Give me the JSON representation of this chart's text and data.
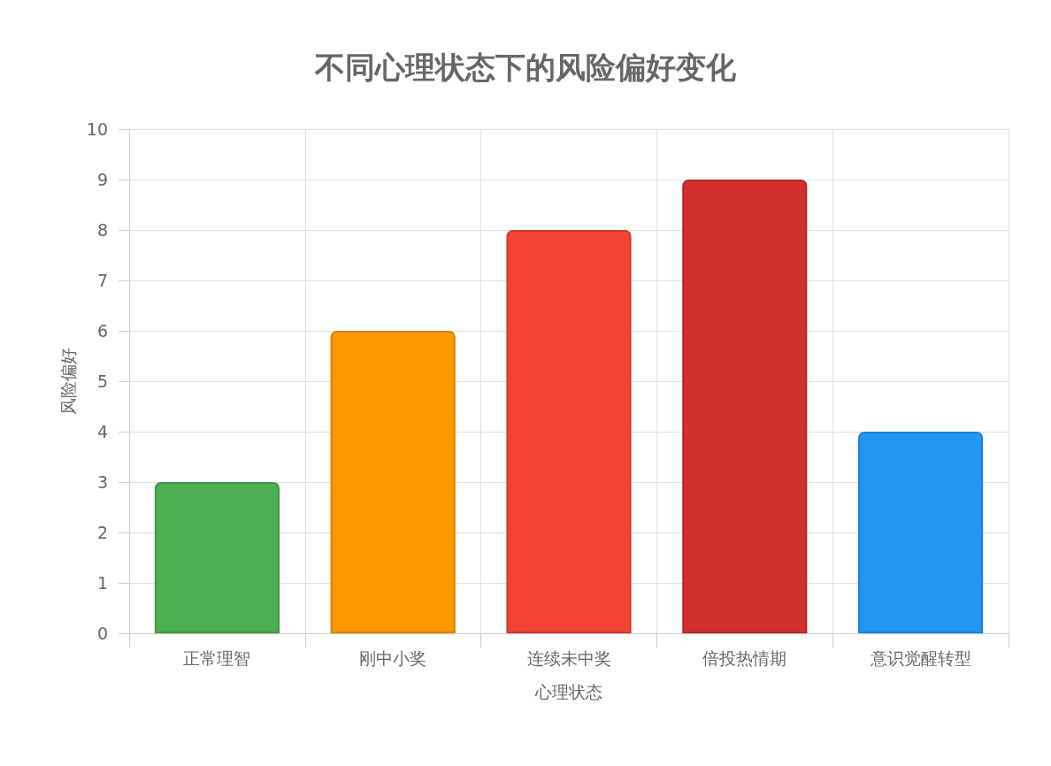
{
  "chart_data": {
    "type": "bar",
    "title": "不同心理状态下的风险偏好变化",
    "xlabel": "心理状态",
    "ylabel": "风险偏好",
    "categories": [
      "正常理智",
      "刚中小奖",
      "连续未中奖",
      "倍投热情期",
      "意识觉醒转型"
    ],
    "values": [
      3,
      6,
      8,
      9,
      4
    ],
    "colors": [
      "#4caf50",
      "#ff9800",
      "#f44336",
      "#d32f2f",
      "#2196f3"
    ],
    "ylim": [
      0,
      10
    ],
    "yticks": [
      0,
      1,
      2,
      3,
      4,
      5,
      6,
      7,
      8,
      9,
      10
    ],
    "grid": true
  }
}
